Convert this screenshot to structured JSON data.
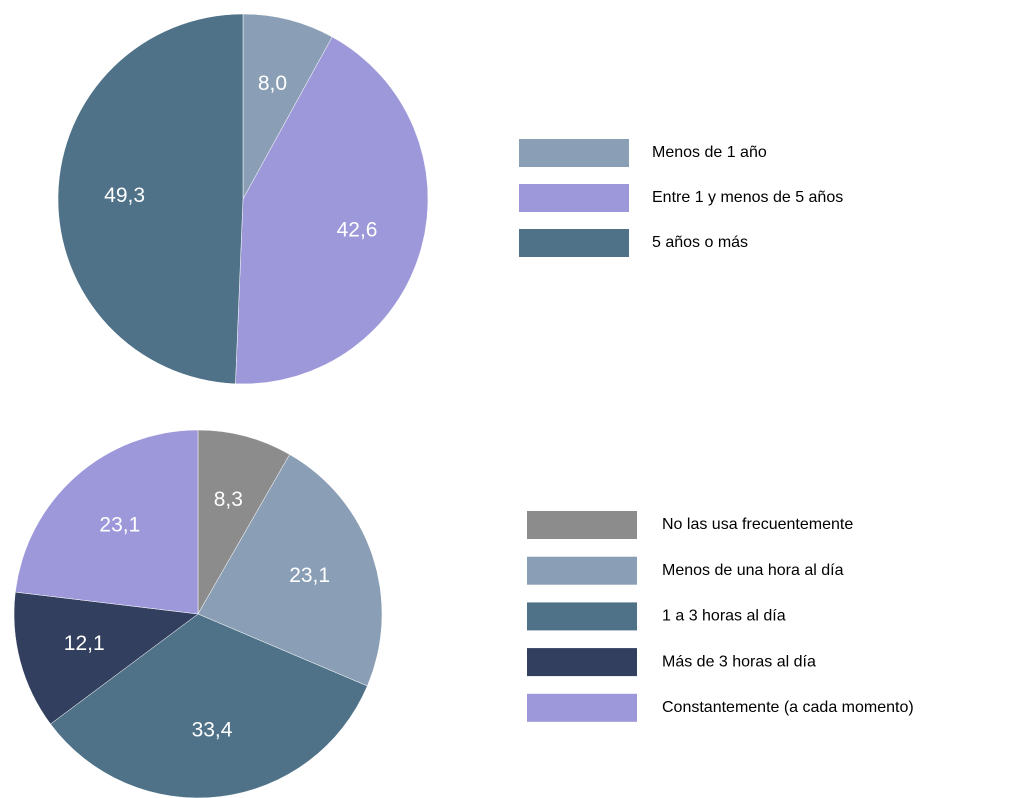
{
  "chart_data": [
    {
      "type": "pie",
      "categories": [
        "Menos de 1 año",
        "Entre 1 y menos de 5 años",
        "5 años o más"
      ],
      "values": [
        8.0,
        42.6,
        49.3
      ],
      "value_labels": [
        "8,0",
        "42,6",
        "49,3"
      ],
      "colors": [
        "#8a9fb5",
        "#9d98d9",
        "#4f7289"
      ]
    },
    {
      "type": "pie",
      "categories": [
        "No las usa frecuentemente",
        "Menos de una hora al día",
        "1 a 3 horas al día",
        "Más de 3 horas al día",
        "Constantemente (a cada momento)"
      ],
      "values": [
        8.3,
        23.1,
        33.4,
        12.1,
        23.1
      ],
      "value_labels": [
        "8,3",
        "23,1",
        "33,4",
        "12,1",
        "23,1"
      ],
      "colors": [
        "#8c8c8c",
        "#8a9fb5",
        "#4f7289",
        "#333f5e",
        "#9d98d9"
      ]
    }
  ]
}
